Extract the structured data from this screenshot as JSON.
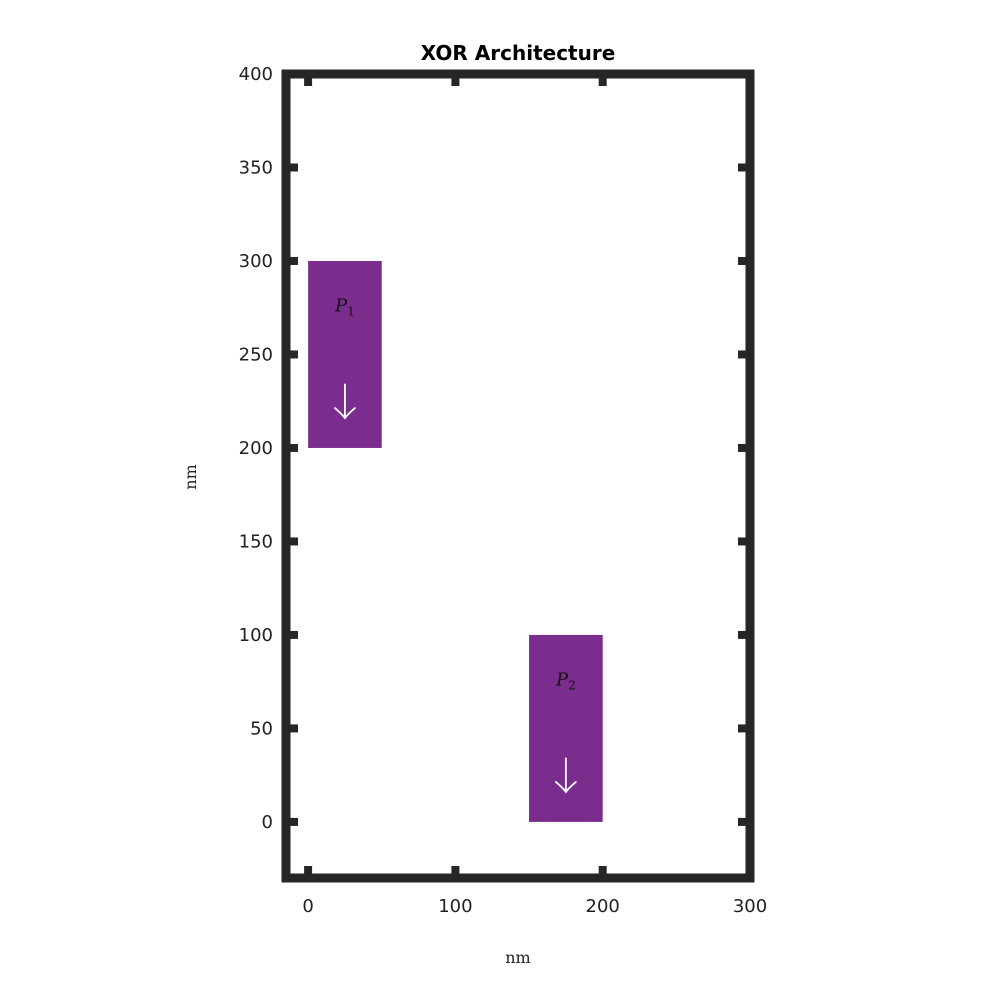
{
  "chart_data": {
    "type": "diagram",
    "title": "XOR Architecture",
    "xlabel": "nm",
    "ylabel": "nm",
    "xlim": [
      -15,
      300
    ],
    "ylim": [
      -30,
      400
    ],
    "xticks": [
      0,
      100,
      200,
      300
    ],
    "yticks": [
      0,
      50,
      100,
      150,
      200,
      250,
      300,
      350,
      400
    ],
    "grid": false,
    "colors": {
      "magnet": "#7b2d8e",
      "frame": "#262626",
      "arrow": "#ffffff"
    },
    "magnets": [
      {
        "label": "P",
        "subscript": "1",
        "x": [
          0,
          50
        ],
        "y": [
          200,
          300
        ],
        "magnetization": "down",
        "arrow_icon": "down-arrow-icon"
      },
      {
        "label": "P",
        "subscript": "2",
        "x": [
          150,
          200
        ],
        "y": [
          0,
          100
        ],
        "magnetization": "down",
        "arrow_icon": "down-arrow-icon"
      }
    ]
  }
}
